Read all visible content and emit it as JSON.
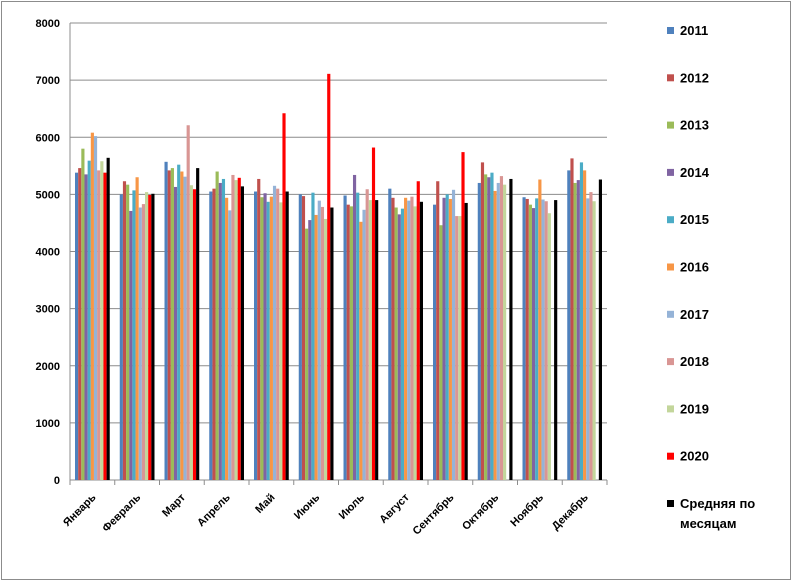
{
  "chart_data": {
    "type": "bar",
    "title": "",
    "xlabel": "",
    "ylabel": "",
    "ylim": [
      0,
      8000
    ],
    "yticks": [
      "0",
      "1000",
      "2000",
      "3000",
      "4000",
      "5000",
      "6000",
      "7000",
      "8000"
    ],
    "grid": true,
    "legend_position": "right",
    "categories": [
      "Январь",
      "Февраль",
      "Март",
      "Апрель",
      "Май",
      "Июнь",
      "Июль",
      "Август",
      "Сентябрь",
      "Октябрь",
      "Ноябрь",
      "Декабрь"
    ],
    "series": [
      {
        "name": "2011",
        "color": "#4f81bd",
        "values": [
          5380,
          5000,
          5570,
          5050,
          5050,
          5000,
          4980,
          5100,
          4820,
          5200,
          4950,
          5420
        ]
      },
      {
        "name": "2012",
        "color": "#c0504d",
        "values": [
          5460,
          5230,
          5420,
          5100,
          5270,
          4970,
          4820,
          4940,
          5230,
          5560,
          4920,
          5630
        ]
      },
      {
        "name": "2013",
        "color": "#9bbb59",
        "values": [
          5800,
          5170,
          5460,
          5400,
          4950,
          4400,
          4790,
          4770,
          4460,
          5350,
          4820,
          5200
        ]
      },
      {
        "name": "2014",
        "color": "#8064a2",
        "values": [
          5350,
          4710,
          5130,
          5200,
          5020,
          4550,
          5340,
          4650,
          4940,
          5300,
          4760,
          5250
        ]
      },
      {
        "name": "2015",
        "color": "#4bacc6",
        "values": [
          5590,
          5070,
          5520,
          5270,
          4870,
          5030,
          5030,
          4750,
          5000,
          5380,
          4930,
          5560
        ]
      },
      {
        "name": "2016",
        "color": "#f79646",
        "values": [
          6080,
          5300,
          5400,
          4940,
          4960,
          4640,
          4520,
          4940,
          4920,
          5060,
          5260,
          5420
        ]
      },
      {
        "name": "2017",
        "color": "#95b3d7",
        "values": [
          6020,
          4770,
          5310,
          4720,
          5150,
          4890,
          4730,
          4890,
          5080,
          5200,
          4910,
          4930
        ]
      },
      {
        "name": "2018",
        "color": "#d99694",
        "values": [
          5420,
          4830,
          6210,
          5340,
          5100,
          4780,
          5090,
          4960,
          4620,
          5320,
          4880,
          5040
        ]
      },
      {
        "name": "2019",
        "color": "#c3d69b",
        "values": [
          5580,
          5040,
          5160,
          5250,
          4860,
          4570,
          4900,
          4790,
          4620,
          5170,
          4670,
          4880
        ]
      },
      {
        "name": "2020",
        "color": "#ff0000",
        "values": [
          5380,
          4990,
          5090,
          5290,
          6420,
          7110,
          5820,
          5230,
          5740,
          null,
          null,
          null
        ]
      },
      {
        "name": "Средняя по месяцам",
        "color": "#000000",
        "values": [
          5640,
          5010,
          5460,
          5140,
          5050,
          4770,
          4900,
          4870,
          4850,
          5270,
          4900,
          5260
        ]
      }
    ]
  }
}
